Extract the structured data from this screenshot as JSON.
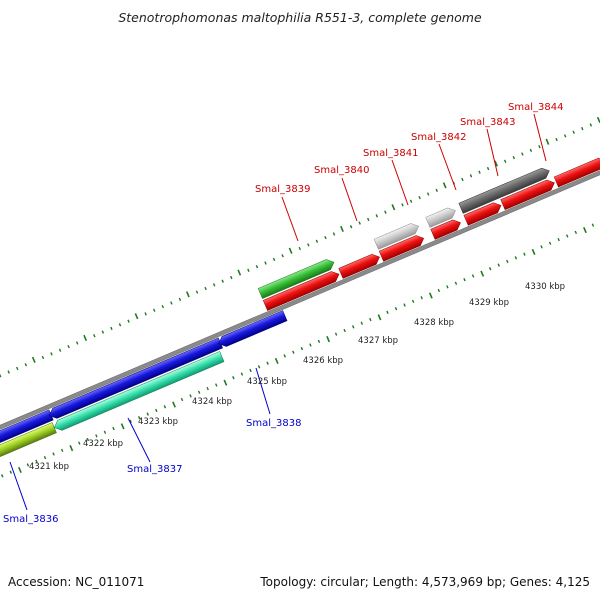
{
  "title": "Stenotrophomonas maltophilia R551-3, complete genome",
  "footer": {
    "accession": "Accession: NC_011071",
    "summary": "Topology: circular; Length: 4,573,969 bp; Genes: 4,125"
  },
  "scale_ticks": [
    "4321 kbp",
    "4322 kbp",
    "4323 kbp",
    "4324 kbp",
    "4325 kbp",
    "4326 kbp",
    "4327 kbp",
    "4328 kbp",
    "4329 kbp",
    "4330 kbp"
  ],
  "genes_forward": [
    {
      "name": "Smal_3839",
      "color": "#dd0000"
    },
    {
      "name": "Smal_3840",
      "color": "#dd0000"
    },
    {
      "name": "Smal_3841",
      "color": "#dd0000"
    },
    {
      "name": "Smal_3842",
      "color": "#dd0000"
    },
    {
      "name": "Smal_3843",
      "color": "#dd0000"
    },
    {
      "name": "Smal_3844",
      "color": "#dd0000"
    }
  ],
  "genes_reverse": [
    {
      "name": "Smal_3836",
      "color": "#0000cc"
    },
    {
      "name": "Smal_3837",
      "color": "#0000cc"
    },
    {
      "name": "Smal_3838",
      "color": "#0000cc"
    }
  ],
  "colors": {
    "backbone": "#8a8a8a",
    "tick": "#1f7a1f",
    "forward_cds": "#ee1111",
    "reverse_cds": "#1818dd",
    "cog_green": "#33bb33",
    "cog_teal": "#33ddaa",
    "cog_yellowgreen": "#99cc22",
    "cog_lightgray": "#c8c8c8",
    "cog_darkgray": "#666666"
  }
}
